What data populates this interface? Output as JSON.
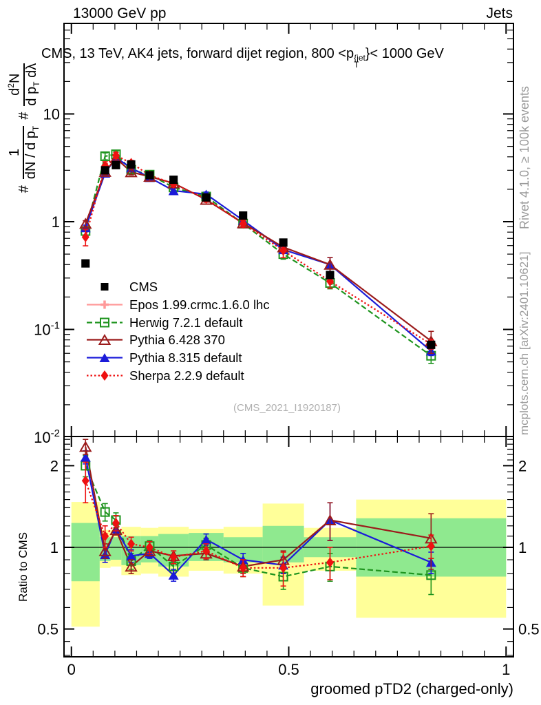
{
  "header": {
    "left": "13000 GeV pp",
    "right": "Jets"
  },
  "title": {
    "pre": "CMS, 13 TeV, AK4 jets, forward dijet region, 800 <p",
    "sup": "{jet",
    "sub": "T",
    "post": "}< 1000 GeV"
  },
  "watermark": "(CMS_2021_I1920187)",
  "side_notes": {
    "top_right": "Rivet 4.1.0, ≥ 100k events",
    "bottom_right": "mcplots.cern.ch [arXiv:2401.10621]"
  },
  "ylabel": {
    "hash1": "#",
    "f1num": "1",
    "f1den": "dN / d p",
    "f1den_sub": "T",
    "hash2": "#",
    "f2num": "d",
    "f2num_sup": "2",
    "f2num_post": "N",
    "f2den": "d p",
    "f2den_sub": "T",
    "f2den_post": " dλ"
  },
  "ratio_label": "Ratio to CMS",
  "colors": {
    "cms": "#000000",
    "epos": "#ff9999",
    "herwig": "#1e941e",
    "pythia6": "#9b1b1b",
    "pythia8": "#1b1bd9",
    "sherpa": "#ee1111",
    "band_yellow": "#ffff99",
    "band_green": "#8fe98f",
    "gray_text": "#9a9a9a"
  },
  "chart_data": {
    "type": "line",
    "title": "CMS, 13 TeV, AK4 jets, forward dijet region, 800 <pT{jet}< 1000 GeV",
    "xlabel": "groomed pTD2 (charged-only)",
    "ylabel_main": "# 1/(dN/dpT) # d2N/(dpT dlambda)",
    "ylabel_ratio": "Ratio to CMS",
    "x_axis": {
      "range": [
        -0.017,
        1.017
      ],
      "major_ticks": [
        {
          "v": 0,
          "t": "0"
        },
        {
          "v": 0.5,
          "t": "0.5"
        },
        {
          "v": 1,
          "t": "1"
        }
      ],
      "minor_step": 0.05
    },
    "y_main_axis": {
      "scale": "log",
      "range": [
        0.0101,
        68
      ],
      "ticks": [
        {
          "v": 10,
          "t": "10"
        },
        {
          "v": 1,
          "t": "1"
        },
        {
          "v": 0.1,
          "t": "10",
          "e": "-1"
        },
        {
          "v": 0.01,
          "t": "10",
          "e": "-2"
        }
      ]
    },
    "y_ratio_axis": {
      "scale": "log",
      "range": [
        0.396,
        2.56
      ],
      "ticks": [
        {
          "v": 2,
          "t": "2"
        },
        {
          "v": 1,
          "t": "1"
        },
        {
          "v": 0.5,
          "t": "0.5"
        }
      ]
    },
    "x": [
      0.0325,
      0.0775,
      0.1025,
      0.1375,
      0.18,
      0.235,
      0.31,
      0.395,
      0.4875,
      0.595,
      0.8275
    ],
    "bin_edges": [
      0,
      0.065,
      0.09,
      0.115,
      0.16,
      0.2,
      0.27,
      0.35,
      0.44,
      0.535,
      0.655,
      1.0
    ],
    "reference": "cms",
    "series": [
      {
        "key": "cms",
        "label": "CMS",
        "color": "#000000",
        "marker": "square",
        "filled": true,
        "line": "none",
        "values": [
          0.41,
          3.0,
          3.35,
          3.4,
          2.7,
          2.45,
          1.68,
          1.14,
          0.64,
          0.32,
          0.072
        ],
        "errors": [
          0.02,
          0.1,
          0.1,
          0.1,
          0.08,
          0.07,
          0.05,
          0.04,
          0.025,
          0.015,
          0.005
        ],
        "ratio": null,
        "ratio_err": null
      },
      {
        "key": "epos",
        "label": "Epos 1.99.crmc.1.6.0 lhc",
        "color": "#ff9999",
        "marker": "plus",
        "filled": false,
        "line": "solid",
        "values": null,
        "errors": null,
        "ratio": null,
        "ratio_err": null,
        "legend_only": true
      },
      {
        "key": "herwig",
        "label": "Herwig 7.2.1 default",
        "color": "#1e941e",
        "marker": "square",
        "filled": false,
        "line": "dashed",
        "values": [
          0.82,
          4.05,
          4.22,
          3.03,
          2.73,
          2.08,
          1.71,
          0.96,
          0.5,
          0.27,
          0.057
        ],
        "ratio": [
          2.0,
          1.35,
          1.26,
          0.89,
          1.01,
          0.85,
          1.02,
          0.84,
          0.78,
          0.85,
          0.79
        ],
        "ratio_err": [
          0.18,
          0.1,
          0.08,
          0.06,
          0.05,
          0.05,
          0.06,
          0.06,
          0.08,
          0.1,
          0.12
        ]
      },
      {
        "key": "pythia6",
        "label": "Pythia 6.428 370",
        "color": "#9b1b1b",
        "marker": "triangle",
        "filled": false,
        "line": "solid",
        "values": [
          0.96,
          2.91,
          3.89,
          2.89,
          2.62,
          2.28,
          1.6,
          0.97,
          0.58,
          0.4,
          0.078
        ],
        "ratio": [
          2.35,
          0.97,
          1.16,
          0.85,
          0.97,
          0.93,
          0.95,
          0.85,
          0.9,
          1.26,
          1.08
        ],
        "ratio_err": [
          0.15,
          0.06,
          0.05,
          0.05,
          0.04,
          0.04,
          0.05,
          0.05,
          0.07,
          0.2,
          0.25
        ]
      },
      {
        "key": "pythia8",
        "label": "Pythia 8.315 default",
        "color": "#1b1bd9",
        "marker": "triangle",
        "filled": true,
        "line": "solid",
        "values": [
          0.88,
          2.82,
          3.92,
          3.16,
          2.57,
          1.94,
          1.8,
          1.03,
          0.55,
          0.4,
          0.063
        ],
        "ratio": [
          2.15,
          0.94,
          1.17,
          0.93,
          0.95,
          0.79,
          1.07,
          0.9,
          0.86,
          1.26,
          0.88
        ],
        "ratio_err": [
          0.12,
          0.06,
          0.05,
          0.05,
          0.04,
          0.04,
          0.05,
          0.05,
          0.06,
          0.2,
          0.08
        ]
      },
      {
        "key": "sherpa",
        "label": "Sherpa 2.2.9 default",
        "color": "#ee1111",
        "marker": "diamond",
        "filled": true,
        "line": "dotted",
        "values": [
          0.72,
          3.3,
          4.12,
          3.5,
          2.7,
          2.25,
          1.63,
          0.96,
          0.54,
          0.28,
          0.073
        ],
        "ratio": [
          1.76,
          1.1,
          1.23,
          1.03,
          1.0,
          0.92,
          0.97,
          0.84,
          0.84,
          0.88,
          1.01
        ],
        "ratio_err": [
          0.3,
          0.1,
          0.08,
          0.06,
          0.05,
          0.05,
          0.06,
          0.06,
          0.12,
          0.12,
          0.1
        ]
      }
    ],
    "ratio_bands": [
      {
        "x0": 0.0,
        "x1": 0.065,
        "yellow": [
          0.51,
          1.47
        ],
        "green": [
          0.75,
          1.23
        ]
      },
      {
        "x0": 0.065,
        "x1": 0.09,
        "yellow": [
          0.84,
          1.16
        ],
        "green": [
          0.89,
          1.09
        ]
      },
      {
        "x0": 0.09,
        "x1": 0.115,
        "yellow": [
          0.85,
          1.16
        ],
        "green": [
          0.9,
          1.09
        ]
      },
      {
        "x0": 0.115,
        "x1": 0.16,
        "yellow": [
          0.79,
          1.19
        ],
        "green": [
          0.86,
          1.1
        ]
      },
      {
        "x0": 0.16,
        "x1": 0.2,
        "yellow": [
          0.8,
          1.18
        ],
        "green": [
          0.88,
          1.1
        ]
      },
      {
        "x0": 0.2,
        "x1": 0.27,
        "yellow": [
          0.78,
          1.19
        ],
        "green": [
          0.85,
          1.12
        ]
      },
      {
        "x0": 0.27,
        "x1": 0.35,
        "yellow": [
          0.82,
          1.17
        ],
        "green": [
          0.89,
          1.13
        ]
      },
      {
        "x0": 0.35,
        "x1": 0.44,
        "yellow": [
          0.8,
          1.19
        ],
        "green": [
          0.88,
          1.09
        ]
      },
      {
        "x0": 0.44,
        "x1": 0.535,
        "yellow": [
          0.61,
          1.45
        ],
        "green": [
          0.88,
          1.2
        ]
      },
      {
        "x0": 0.535,
        "x1": 0.655,
        "yellow": [
          0.82,
          1.18
        ],
        "green": [
          0.92,
          1.09
        ]
      },
      {
        "x0": 0.655,
        "x1": 1.0,
        "yellow": [
          0.55,
          1.5
        ],
        "green": [
          0.78,
          1.28
        ]
      }
    ],
    "legend_position": "middle-left"
  }
}
